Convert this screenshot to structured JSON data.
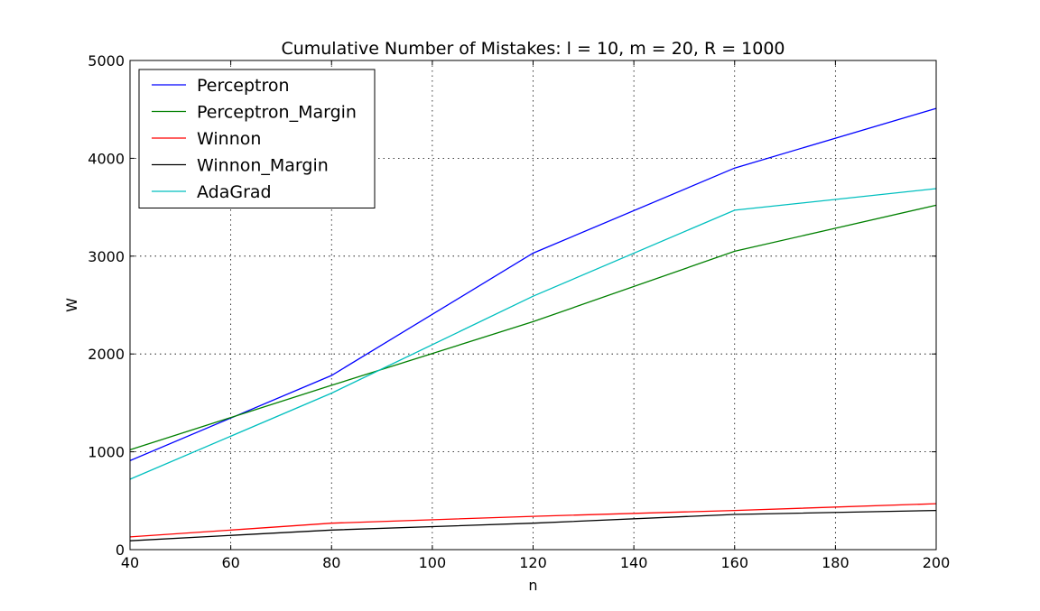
{
  "chart_data": {
    "type": "line",
    "title": "Cumulative Number of Mistakes: l = 10, m = 20, R = 1000",
    "xlabel": "n",
    "ylabel": "W",
    "xlim": [
      40,
      200
    ],
    "ylim": [
      0,
      5000
    ],
    "xticks": [
      40,
      60,
      80,
      100,
      120,
      140,
      160,
      180,
      200
    ],
    "yticks": [
      0,
      1000,
      2000,
      3000,
      4000,
      5000
    ],
    "grid": true,
    "legend_position": "top-left",
    "x": [
      40,
      80,
      120,
      160,
      200
    ],
    "series": [
      {
        "name": "Perceptron",
        "color": "#0000ff",
        "values": [
          910,
          1780,
          3030,
          3900,
          4510
        ]
      },
      {
        "name": "Perceptron_Margin",
        "color": "#008000",
        "values": [
          1020,
          1680,
          2330,
          3050,
          3520
        ]
      },
      {
        "name": "Winnon",
        "color": "#ff0000",
        "values": [
          130,
          270,
          340,
          400,
          470
        ]
      },
      {
        "name": "Winnon_Margin",
        "color": "#000000",
        "values": [
          90,
          200,
          270,
          360,
          400
        ]
      },
      {
        "name": "AdaGrad",
        "color": "#00bfbf",
        "values": [
          720,
          1600,
          2590,
          3470,
          3690
        ]
      }
    ]
  }
}
